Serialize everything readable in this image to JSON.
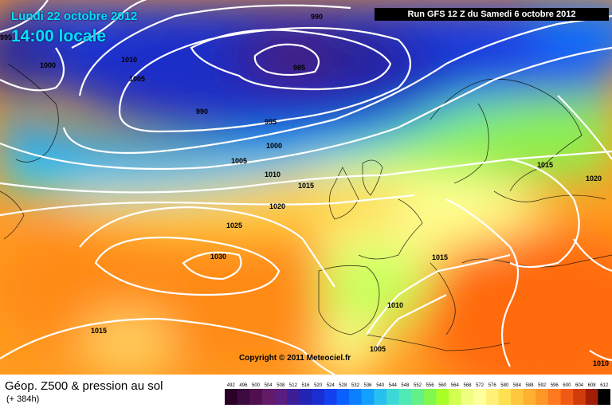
{
  "header": {
    "date": "Lundi 22 octobre 2012",
    "time": "14:00 locale",
    "run": "Run GFS 12 Z du Samedi 6 octobre 2012"
  },
  "footer": {
    "title": "Géop. Z500 & pression au sol",
    "subtitle": "(+ 384h)",
    "copyright": "Copyright © 2011 Meteociel.fr"
  },
  "isobars": [
    "995",
    "1000",
    "1010",
    "1005",
    "990",
    "985",
    "990",
    "995",
    "1000",
    "1005",
    "1010",
    "1015",
    "1020",
    "1025",
    "1030",
    "1015",
    "1015",
    "1010",
    "1005",
    "1015",
    "1020",
    "1010"
  ],
  "legend": {
    "labels": [
      "492",
      "496",
      "500",
      "504",
      "508",
      "512",
      "516",
      "520",
      "524",
      "528",
      "532",
      "536",
      "540",
      "544",
      "548",
      "552",
      "556",
      "560",
      "564",
      "568",
      "572",
      "576",
      "580",
      "584",
      "588",
      "592",
      "596",
      "600",
      "604",
      "608",
      "612"
    ],
    "colors": [
      "#2a0028",
      "#3c0a3e",
      "#501050",
      "#641a66",
      "#5a1e80",
      "#3c1e96",
      "#2424b4",
      "#1a2ed2",
      "#1440f0",
      "#0a60ff",
      "#0a80ff",
      "#14a0ff",
      "#28c0f0",
      "#3cd8d8",
      "#50e8b4",
      "#64f088",
      "#80f850",
      "#a8ff28",
      "#d2ff50",
      "#f0ff82",
      "#ffff9e",
      "#fff078",
      "#ffe050",
      "#ffc83c",
      "#ffb030",
      "#ff9628",
      "#ff7a1e",
      "#f05a14",
      "#d23c0a",
      "#a01e05",
      "#000000"
    ]
  }
}
